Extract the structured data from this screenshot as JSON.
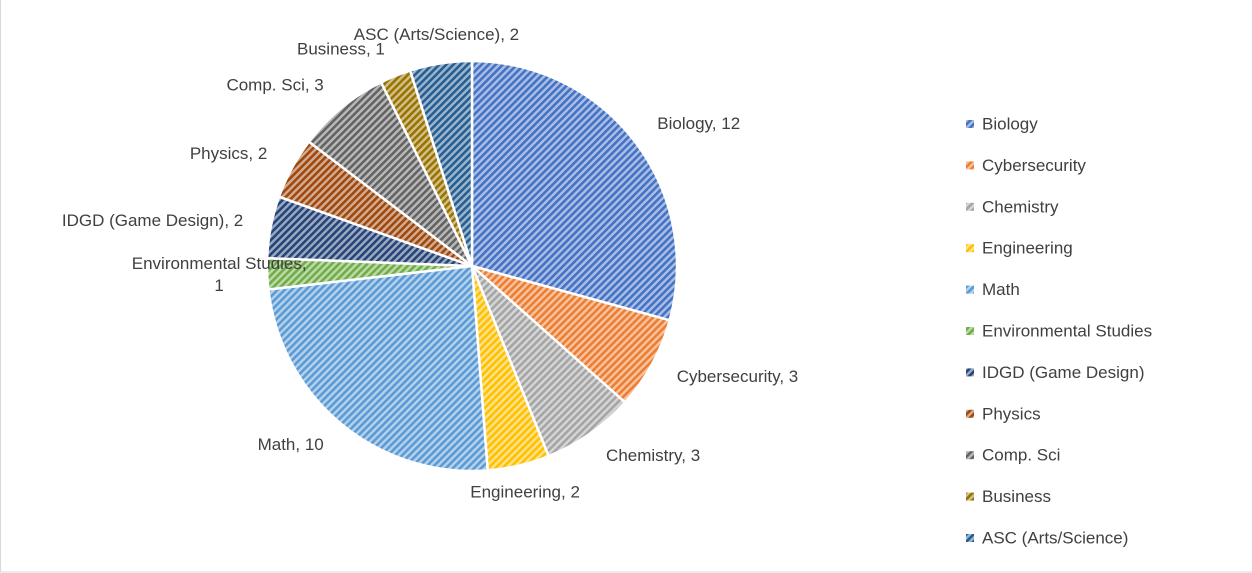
{
  "chart_data": {
    "type": "pie",
    "categories": [
      "Biology",
      "Cybersecurity",
      "Chemistry",
      "Engineering",
      "Math",
      "Environmental Studies",
      "IDGD (Game Design)",
      "Physics",
      "Comp. Sci",
      "Business",
      "ASC (Arts/Science)"
    ],
    "values": [
      12,
      3,
      3,
      2,
      10,
      1,
      2,
      2,
      3,
      1,
      2
    ],
    "value_labels": [
      "Biology, 12",
      "Cybersecurity, 3",
      "Chemistry, 3",
      "Engineering, 2",
      "Math, 10",
      "Environmental Studies, 1",
      "IDGD (Game Design), 2",
      "Physics, 2",
      "Comp. Sci, 3",
      "Business, 1",
      "ASC (Arts/Science), 2"
    ],
    "colors": [
      "#4472c4",
      "#ed7d31",
      "#a5a5a5",
      "#ffc000",
      "#5b9bd5",
      "#70ad47",
      "#264478",
      "#9e480e",
      "#636363",
      "#997300",
      "#255e91"
    ],
    "legend": "right"
  }
}
